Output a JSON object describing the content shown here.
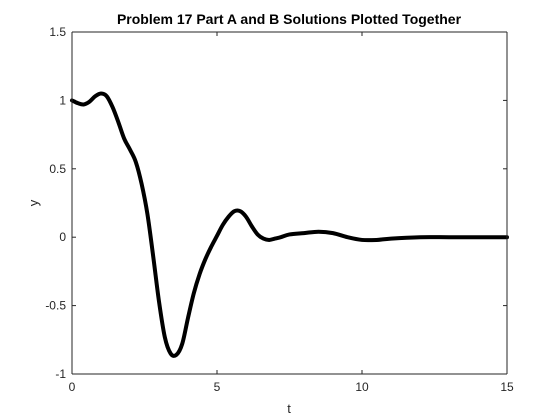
{
  "chart_data": {
    "type": "line",
    "title": "Problem 17 Part A and B Solutions Plotted Together",
    "xlabel": "t",
    "ylabel": "y",
    "xlim": [
      0,
      15
    ],
    "ylim": [
      -1,
      1.5
    ],
    "xticks": [
      "0",
      "5",
      "10",
      "15"
    ],
    "yticks": [
      "-1",
      "-0.5",
      "0",
      "0.5",
      "1",
      "1.5"
    ],
    "grid": false,
    "line_color": "#000000",
    "series": [
      {
        "x": [
          0,
          0.2,
          0.4,
          0.6,
          0.8,
          1.0,
          1.2,
          1.4,
          1.6,
          1.8,
          2.0,
          2.2,
          2.4,
          2.6,
          2.8,
          3.0,
          3.2,
          3.4,
          3.6,
          3.8,
          4.0,
          4.2,
          4.4,
          4.6,
          4.8,
          5.0,
          5.2,
          5.4,
          5.6,
          5.8,
          6.0,
          6.2,
          6.4,
          6.6,
          6.8,
          7.0,
          7.2,
          7.5,
          8.0,
          8.5,
          9.0,
          9.5,
          10.0,
          10.5,
          11.0,
          12.0,
          13.0,
          14.0,
          15.0
        ],
        "y": [
          1.0,
          0.98,
          0.97,
          0.99,
          1.03,
          1.05,
          1.03,
          0.95,
          0.84,
          0.72,
          0.64,
          0.55,
          0.39,
          0.17,
          -0.14,
          -0.47,
          -0.73,
          -0.85,
          -0.86,
          -0.78,
          -0.59,
          -0.41,
          -0.27,
          -0.16,
          -0.07,
          0.01,
          0.09,
          0.15,
          0.19,
          0.19,
          0.15,
          0.08,
          0.02,
          -0.01,
          -0.02,
          -0.01,
          0.0,
          0.02,
          0.03,
          0.04,
          0.03,
          0.0,
          -0.02,
          -0.02,
          -0.01,
          0.0,
          0.0,
          0.0,
          0.0
        ]
      }
    ]
  }
}
